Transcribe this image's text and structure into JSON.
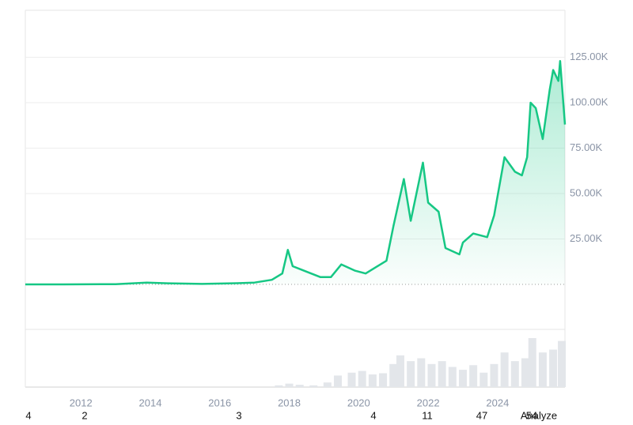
{
  "chart_data": {
    "type": "line",
    "color": "#16c784",
    "x": [
      2010.4,
      2011.5,
      2013.0,
      2013.9,
      2014.5,
      2015.5,
      2016.5,
      2017.0,
      2017.5,
      2017.8,
      2017.96,
      2018.1,
      2018.5,
      2018.9,
      2019.2,
      2019.5,
      2019.9,
      2020.2,
      2020.5,
      2020.8,
      2021.0,
      2021.3,
      2021.5,
      2021.85,
      2022.0,
      2022.3,
      2022.5,
      2022.9,
      2023.0,
      2023.3,
      2023.7,
      2023.9,
      2024.2,
      2024.5,
      2024.7,
      2024.85,
      2024.95,
      2025.1,
      2025.3,
      2025.5,
      2025.6,
      2025.75,
      2025.8,
      2025.94
    ],
    "values": [
      0,
      0,
      100,
      1000,
      600,
      250,
      650,
      1000,
      2500,
      6000,
      19000,
      10000,
      7000,
      4000,
      4000,
      11000,
      7500,
      6000,
      9500,
      13000,
      32000,
      58000,
      35000,
      67000,
      45000,
      40000,
      20000,
      16500,
      23000,
      28000,
      26000,
      38000,
      70000,
      62000,
      60000,
      70000,
      100000,
      97000,
      80000,
      107000,
      118000,
      112000,
      123000,
      88000
    ],
    "xlim": [
      2010.4,
      2025.94
    ],
    "xticks": [
      2012,
      2014,
      2016,
      2018,
      2020,
      2022,
      2024
    ],
    "ylim": [
      -24800,
      150900
    ],
    "yticks": [
      {
        "value": 25000,
        "label": "25.00K"
      },
      {
        "value": 50000,
        "label": "50.00K"
      },
      {
        "value": 75000,
        "label": "75.00K"
      },
      {
        "value": 100000,
        "label": "100.00K"
      },
      {
        "value": 125000,
        "label": "125.00K"
      }
    ],
    "grid": true,
    "volume": {
      "color": "#e3e6ea",
      "x": [
        2017.7,
        2018.0,
        2018.3,
        2018.7,
        2019.1,
        2019.4,
        2019.8,
        2020.1,
        2020.4,
        2020.7,
        2021.0,
        2021.2,
        2021.5,
        2021.8,
        2022.1,
        2022.4,
        2022.7,
        2023.0,
        2023.3,
        2023.6,
        2023.9,
        2024.2,
        2024.5,
        2024.8,
        2025.0,
        2025.3,
        2025.6,
        2025.85
      ],
      "values": [
        3,
        6,
        4,
        3,
        8,
        20,
        25,
        28,
        22,
        24,
        40,
        55,
        45,
        50,
        40,
        45,
        35,
        30,
        38,
        25,
        40,
        60,
        45,
        50,
        85,
        60,
        65,
        80
      ],
      "ylim": [
        0,
        100
      ]
    },
    "footer_labels": [
      "4",
      "2",
      "3",
      "4",
      "11",
      "47",
      "54",
      "Analyze"
    ]
  }
}
